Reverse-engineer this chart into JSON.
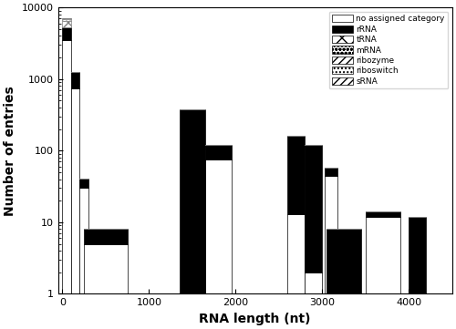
{
  "xlabel": "RNA length (nt)",
  "ylabel": "Number of entries",
  "ylim": [
    1,
    10000
  ],
  "xlim": [
    -50,
    4500
  ],
  "xticks": [
    0,
    1000,
    2000,
    3000,
    4000
  ],
  "figsize": [
    5.0,
    3.61
  ],
  "dpi": 100,
  "bins_x": [
    50,
    150,
    250,
    500,
    1500,
    1800,
    2700,
    2900,
    3100,
    3250,
    3700,
    4100
  ],
  "bin_widths": [
    100,
    100,
    100,
    500,
    300,
    300,
    200,
    200,
    150,
    400,
    400,
    200
  ],
  "bar_data": [
    {
      "no_cat": 3500,
      "rRNA": 1800,
      "tRNA": 1100,
      "mRNA": 550,
      "ribozyme": 200,
      "riboswitch": 9,
      "sRNA": 5
    },
    {
      "no_cat": 750,
      "rRNA": 500,
      "tRNA": 0,
      "mRNA": 0,
      "ribozyme": 0,
      "riboswitch": 0,
      "sRNA": 0
    },
    {
      "no_cat": 30,
      "rRNA": 11,
      "tRNA": 0,
      "mRNA": 0,
      "ribozyme": 0,
      "riboswitch": 0,
      "sRNA": 0
    },
    {
      "no_cat": 5,
      "rRNA": 3,
      "tRNA": 0,
      "mRNA": 0,
      "ribozyme": 0,
      "riboswitch": 0,
      "sRNA": 0
    },
    {
      "no_cat": 0,
      "rRNA": 380,
      "tRNA": 0,
      "mRNA": 0,
      "ribozyme": 0,
      "riboswitch": 0,
      "sRNA": 0
    },
    {
      "no_cat": 75,
      "rRNA": 45,
      "tRNA": 0,
      "mRNA": 0,
      "ribozyme": 0,
      "riboswitch": 0,
      "sRNA": 0
    },
    {
      "no_cat": 13,
      "rRNA": 150,
      "tRNA": 0,
      "mRNA": 0,
      "ribozyme": 0,
      "riboswitch": 0,
      "sRNA": 0
    },
    {
      "no_cat": 2,
      "rRNA": 120,
      "tRNA": 0,
      "mRNA": 0,
      "ribozyme": 0,
      "riboswitch": 0,
      "sRNA": 0
    },
    {
      "no_cat": 45,
      "rRNA": 13,
      "tRNA": 0,
      "mRNA": 0,
      "ribozyme": 0,
      "riboswitch": 0,
      "sRNA": 0
    },
    {
      "no_cat": 0,
      "rRNA": 8,
      "tRNA": 0,
      "mRNA": 0,
      "ribozyme": 0,
      "riboswitch": 0,
      "sRNA": 0
    },
    {
      "no_cat": 12,
      "rRNA": 2,
      "tRNA": 0,
      "mRNA": 0,
      "ribozyme": 0,
      "riboswitch": 0,
      "sRNA": 0
    },
    {
      "no_cat": 0,
      "rRNA": 12,
      "tRNA": 0,
      "mRNA": 0,
      "ribozyme": 0,
      "riboswitch": 0,
      "sRNA": 0
    }
  ],
  "cat_styles": [
    {
      "key": "no_cat",
      "color": "white",
      "hatch": "",
      "label": "no assigned category",
      "edgecolor": "black"
    },
    {
      "key": "rRNA",
      "color": "black",
      "hatch": "",
      "label": "rRNA",
      "edgecolor": "black"
    },
    {
      "key": "tRNA",
      "color": "white",
      "hatch": "xx",
      "label": "tRNA",
      "edgecolor": "gray"
    },
    {
      "key": "mRNA",
      "color": "white",
      "hatch": "oooo",
      "label": "mRNA",
      "edgecolor": "gray"
    },
    {
      "key": "ribozyme",
      "color": "white",
      "hatch": "////",
      "label": "ribozyme",
      "edgecolor": "gray"
    },
    {
      "key": "riboswitch",
      "color": "white",
      "hatch": "....",
      "label": "riboswitch",
      "edgecolor": "gray"
    },
    {
      "key": "sRNA",
      "color": "white",
      "hatch": "////",
      "label": "sRNA",
      "edgecolor": "gray"
    }
  ]
}
